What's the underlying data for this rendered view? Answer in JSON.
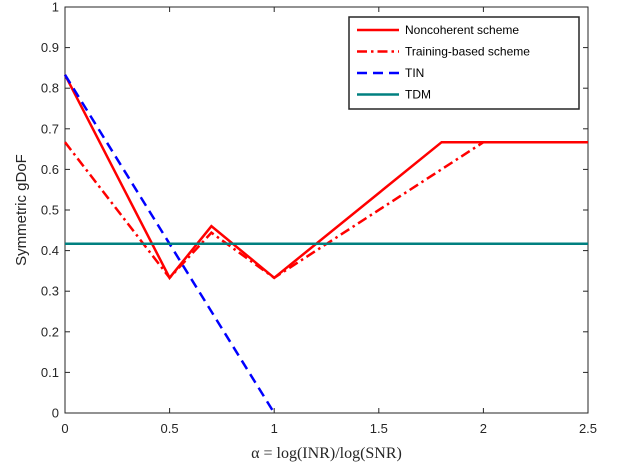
{
  "chart_data": {
    "type": "line",
    "title": "",
    "xlabel": "α = log(INR)/log(SNR)",
    "ylabel": "Symmetric gDoF",
    "xlim": [
      0,
      2.5
    ],
    "ylim": [
      0,
      1
    ],
    "x_ticks": [
      0,
      0.5,
      1,
      1.5,
      2,
      2.5
    ],
    "x_tick_labels": [
      "0",
      "0.5",
      "1",
      "1.5",
      "2",
      "2.5"
    ],
    "y_ticks": [
      0,
      0.1,
      0.2,
      0.3,
      0.4,
      0.5,
      0.6,
      0.7,
      0.8,
      0.9,
      1
    ],
    "y_tick_labels": [
      "0",
      "0.1",
      "0.2",
      "0.3",
      "0.4",
      "0.5",
      "0.6",
      "0.7",
      "0.8",
      "0.9",
      "1"
    ],
    "grid": false,
    "legend_position": "top-right",
    "series": [
      {
        "name": "Noncoherent scheme",
        "color": "#ff0000",
        "line_style": "solid",
        "x": [
          0,
          0.5,
          0.7,
          1,
          1.8,
          2.5
        ],
        "y": [
          0.833,
          0.333,
          0.46,
          0.333,
          0.667,
          0.667
        ]
      },
      {
        "name": "Training-based scheme",
        "color": "#ff0000",
        "line_style": "dashdot",
        "x": [
          0,
          0.5,
          0.7,
          1,
          2,
          2.5
        ],
        "y": [
          0.667,
          0.333,
          0.444,
          0.333,
          0.667,
          0.667
        ]
      },
      {
        "name": "TIN",
        "color": "#0000ff",
        "line_style": "dashed",
        "x": [
          0,
          1
        ],
        "y": [
          0.833,
          0
        ]
      },
      {
        "name": "TDM",
        "color": "#008080",
        "line_style": "solid",
        "x": [
          0,
          2.5
        ],
        "y": [
          0.417,
          0.417
        ]
      }
    ]
  }
}
